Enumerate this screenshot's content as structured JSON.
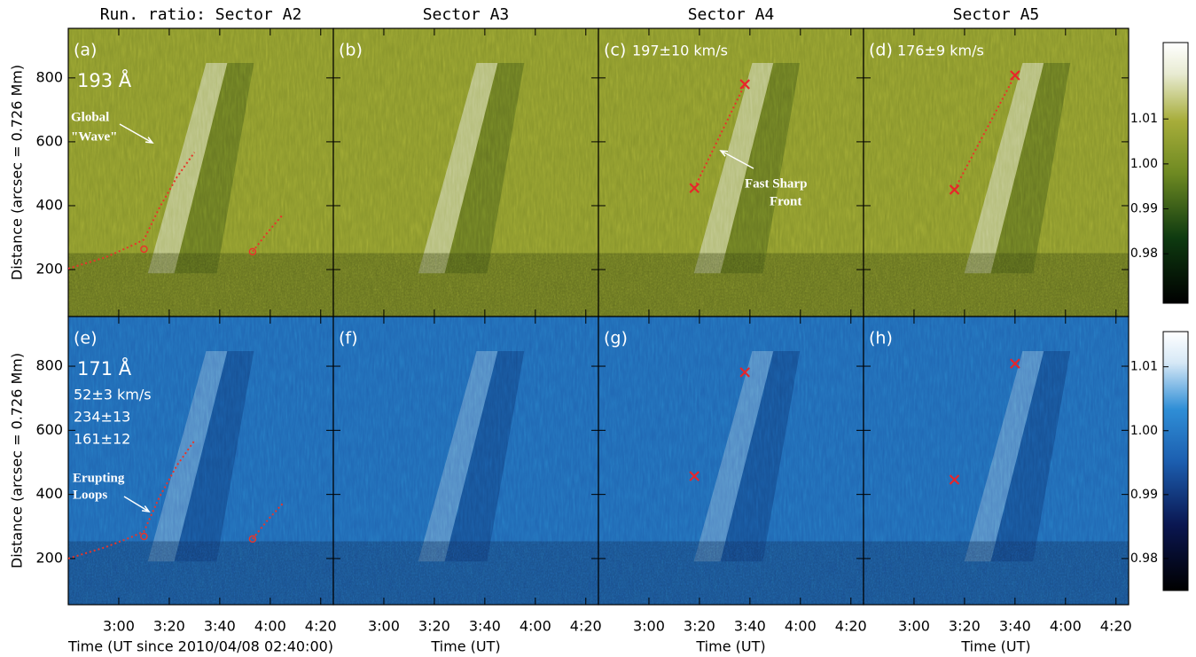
{
  "chart_data": [
    {
      "type": "stackplot",
      "panel_label": "(a)",
      "title": "Run. ratio: Sector A2",
      "channel": "193 Å",
      "annotations": [
        "Global",
        "\"Wave\""
      ],
      "ylabel": "Distance (arcsec = 0.726 Mm)",
      "colormap": "olive",
      "xlim": [
        0,
        105
      ],
      "xticks": [
        20,
        40,
        60,
        80,
        100
      ],
      "ylim": [
        53,
        955
      ],
      "yticks": [
        200,
        400,
        600,
        800
      ],
      "fits": [
        {
          "x": [
            0,
            15,
            26,
            30,
            36,
            43,
            50
          ],
          "y": [
            203,
            239,
            278,
            294,
            392,
            489,
            567
          ]
        },
        {
          "x": [
            73,
            79,
            85
          ],
          "y": [
            256,
            317,
            372
          ]
        }
      ],
      "points": {
        "x": [
          30,
          73
        ],
        "y": [
          264,
          256
        ],
        "marker": "o"
      }
    },
    {
      "type": "stackplot",
      "panel_label": "(b)",
      "title": "Sector A3",
      "colormap": "olive",
      "xlim": [
        0,
        105
      ],
      "xticks": [
        20,
        40,
        60,
        80,
        100
      ],
      "ylim": [
        53,
        955
      ],
      "yticks": [
        200,
        400,
        600,
        800
      ]
    },
    {
      "type": "stackplot",
      "panel_label": "(c)",
      "title": "Sector A4",
      "speed": "197±10 km/s",
      "annotations": [
        "Fast Sharp",
        "Front"
      ],
      "colormap": "olive",
      "xlim": [
        0,
        105
      ],
      "xticks": [
        20,
        40,
        60,
        80,
        100
      ],
      "ylim": [
        53,
        955
      ],
      "yticks": [
        200,
        400,
        600,
        800
      ],
      "fits": [
        {
          "x": [
            38,
            58
          ],
          "y": [
            455,
            780
          ]
        }
      ],
      "points": {
        "x": [
          38,
          58
        ],
        "y": [
          455,
          780
        ],
        "marker": "x"
      }
    },
    {
      "type": "stackplot",
      "panel_label": "(d)",
      "title": "Sector A5",
      "speed": "176±9 km/s",
      "colormap": "olive",
      "xlim": [
        0,
        105
      ],
      "xticks": [
        20,
        40,
        60,
        80,
        100
      ],
      "ylim": [
        53,
        955
      ],
      "yticks": [
        200,
        400,
        600,
        800
      ],
      "fits": [
        {
          "x": [
            36,
            60
          ],
          "y": [
            450,
            808
          ]
        }
      ],
      "points": {
        "x": [
          36,
          60
        ],
        "y": [
          450,
          808
        ],
        "marker": "x"
      }
    },
    {
      "type": "stackplot",
      "panel_label": "(e)",
      "channel": "171 Å",
      "speeds": [
        "52±3 km/s",
        "234±13",
        "161±12"
      ],
      "annotations": [
        "Erupting",
        "Loops"
      ],
      "ylabel": "Distance (arcsec = 0.726 Mm)",
      "xlabel": "Time (UT since 2010/04/08 02:40:00)",
      "colormap": "blue",
      "xlim": [
        0,
        105
      ],
      "xticks": [
        {
          "value": 20,
          "label": "3:00"
        },
        {
          "value": 40,
          "label": "3:20"
        },
        {
          "value": 60,
          "label": "3:40"
        },
        {
          "value": 80,
          "label": "4:00"
        },
        {
          "value": 100,
          "label": "4:20"
        }
      ],
      "ylim": [
        56,
        955
      ],
      "yticks": [
        200,
        400,
        600,
        800
      ],
      "fits": [
        {
          "x": [
            0,
            15,
            26,
            30,
            36,
            43,
            50
          ],
          "y": [
            200,
            236,
            270,
            285,
            390,
            490,
            568
          ]
        },
        {
          "x": [
            73,
            79,
            85
          ],
          "y": [
            261,
            320,
            372
          ]
        }
      ],
      "points": {
        "x": [
          30,
          73
        ],
        "y": [
          269,
          261
        ],
        "marker": "o"
      }
    },
    {
      "type": "stackplot",
      "panel_label": "(f)",
      "xlabel": "Time (UT)",
      "colormap": "blue",
      "xlim": [
        0,
        105
      ],
      "xticks": [
        {
          "value": 20,
          "label": "3:00"
        },
        {
          "value": 40,
          "label": "3:20"
        },
        {
          "value": 60,
          "label": "3:40"
        },
        {
          "value": 80,
          "label": "4:00"
        },
        {
          "value": 100,
          "label": "4:20"
        }
      ],
      "ylim": [
        56,
        955
      ],
      "yticks": [
        200,
        400,
        600,
        800
      ]
    },
    {
      "type": "stackplot",
      "panel_label": "(g)",
      "xlabel": "Time (UT)",
      "colormap": "blue",
      "xlim": [
        0,
        105
      ],
      "xticks": [
        {
          "value": 20,
          "label": "3:00"
        },
        {
          "value": 40,
          "label": "3:20"
        },
        {
          "value": 60,
          "label": "3:40"
        },
        {
          "value": 80,
          "label": "4:00"
        },
        {
          "value": 100,
          "label": "4:20"
        }
      ],
      "ylim": [
        56,
        955
      ],
      "yticks": [
        200,
        400,
        600,
        800
      ],
      "points": {
        "x": [
          38,
          58
        ],
        "y": [
          457,
          781
        ],
        "marker": "x"
      }
    },
    {
      "type": "stackplot",
      "panel_label": "(h)",
      "xlabel": "Time (UT)",
      "colormap": "blue",
      "xlim": [
        0,
        105
      ],
      "xticks": [
        {
          "value": 20,
          "label": "3:00"
        },
        {
          "value": 40,
          "label": "3:20"
        },
        {
          "value": 60,
          "label": "3:40"
        },
        {
          "value": 80,
          "label": "4:00"
        },
        {
          "value": 100,
          "label": "4:20"
        }
      ],
      "ylim": [
        56,
        955
      ],
      "yticks": [
        200,
        400,
        600,
        800
      ],
      "points": {
        "x": [
          36,
          60
        ],
        "y": [
          446,
          808
        ],
        "marker": "x"
      }
    }
  ],
  "colorbars": [
    {
      "colormap": "olive",
      "clim": [
        0.969,
        1.027
      ],
      "ticks": [
        0.98,
        0.99,
        {
          "value": 1,
          "label": "1.00"
        },
        1.01
      ]
    },
    {
      "colormap": "blue",
      "clim": [
        0.975,
        1.0155
      ],
      "ticks": [
        0.98,
        0.99,
        {
          "value": 1,
          "label": "1.00"
        },
        1.01
      ]
    }
  ]
}
